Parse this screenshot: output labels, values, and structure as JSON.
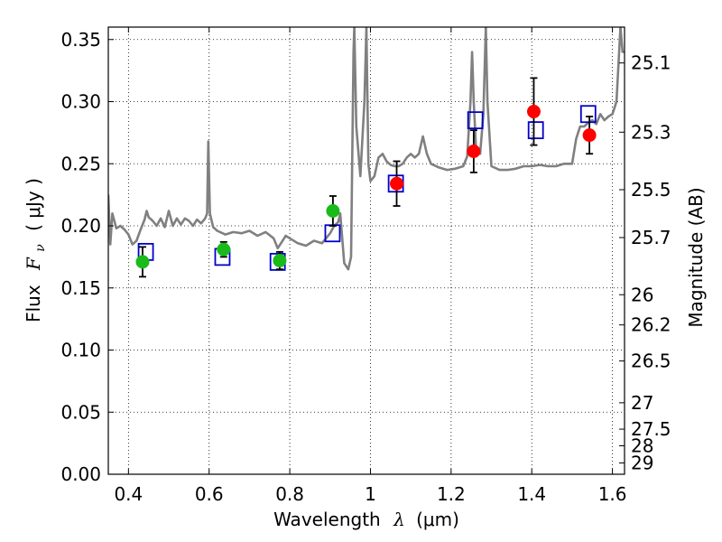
{
  "chart_data": {
    "type": "scatter",
    "xlabel_main": "Wavelength",
    "xlabel_symbol": "λ",
    "xlabel_unit": "(μm)",
    "ylabel_main": "Flux",
    "ylabel_symbol": "F",
    "ylabel_sub": "ν",
    "ylabel_unit": "( μJy )",
    "ylabel_right": "Magnitude (AB)",
    "xlim": [
      0.35,
      1.63
    ],
    "ylim": [
      0.0,
      0.36
    ],
    "grid": true,
    "x_ticks": [
      {
        "v": 0.4,
        "label": "0.4"
      },
      {
        "v": 0.6,
        "label": "0.6"
      },
      {
        "v": 0.8,
        "label": "0.8"
      },
      {
        "v": 1.0,
        "label": "1"
      },
      {
        "v": 1.2,
        "label": "1.2"
      },
      {
        "v": 1.4,
        "label": "1.4"
      },
      {
        "v": 1.6,
        "label": "1.6"
      }
    ],
    "y_ticks": [
      {
        "v": 0.0,
        "label": "0.00"
      },
      {
        "v": 0.05,
        "label": "0.05"
      },
      {
        "v": 0.1,
        "label": "0.10"
      },
      {
        "v": 0.15,
        "label": "0.15"
      },
      {
        "v": 0.2,
        "label": "0.20"
      },
      {
        "v": 0.25,
        "label": "0.25"
      },
      {
        "v": 0.3,
        "label": "0.30"
      },
      {
        "v": 0.35,
        "label": "0.35"
      }
    ],
    "mag_ticks": [
      "25.1",
      "25.3",
      "25.5",
      "25.7",
      "26",
      "26.2",
      "26.5",
      "27",
      "27.5",
      "28",
      "29"
    ],
    "colors": {
      "model": "#808080",
      "optical": "#1aba1a",
      "nir": "#ff0000",
      "model_phot": "#0000cc",
      "errorbar": "#000000"
    },
    "series": [
      {
        "kind": "line",
        "color": "#808080",
        "points": [
          [
            0.35,
            0.225
          ],
          [
            0.355,
            0.185
          ],
          [
            0.36,
            0.21
          ],
          [
            0.37,
            0.198
          ],
          [
            0.38,
            0.2
          ],
          [
            0.39,
            0.197
          ],
          [
            0.4,
            0.193
          ],
          [
            0.41,
            0.185
          ],
          [
            0.42,
            0.188
          ],
          [
            0.43,
            0.197
          ],
          [
            0.44,
            0.205
          ],
          [
            0.445,
            0.212
          ],
          [
            0.45,
            0.207
          ],
          [
            0.46,
            0.204
          ],
          [
            0.47,
            0.2
          ],
          [
            0.48,
            0.206
          ],
          [
            0.49,
            0.199
          ],
          [
            0.5,
            0.212
          ],
          [
            0.51,
            0.2
          ],
          [
            0.52,
            0.206
          ],
          [
            0.53,
            0.201
          ],
          [
            0.54,
            0.206
          ],
          [
            0.55,
            0.204
          ],
          [
            0.56,
            0.2
          ],
          [
            0.57,
            0.205
          ],
          [
            0.58,
            0.202
          ],
          [
            0.59,
            0.206
          ],
          [
            0.595,
            0.21
          ],
          [
            0.598,
            0.268
          ],
          [
            0.602,
            0.21
          ],
          [
            0.61,
            0.199
          ],
          [
            0.62,
            0.196
          ],
          [
            0.64,
            0.193
          ],
          [
            0.66,
            0.195
          ],
          [
            0.68,
            0.194
          ],
          [
            0.7,
            0.196
          ],
          [
            0.72,
            0.192
          ],
          [
            0.74,
            0.195
          ],
          [
            0.76,
            0.19
          ],
          [
            0.77,
            0.182
          ],
          [
            0.78,
            0.187
          ],
          [
            0.79,
            0.192
          ],
          [
            0.8,
            0.19
          ],
          [
            0.82,
            0.186
          ],
          [
            0.84,
            0.184
          ],
          [
            0.86,
            0.188
          ],
          [
            0.88,
            0.186
          ],
          [
            0.9,
            0.194
          ],
          [
            0.91,
            0.2
          ],
          [
            0.92,
            0.203
          ],
          [
            0.925,
            0.21
          ],
          [
            0.93,
            0.19
          ],
          [
            0.935,
            0.17
          ],
          [
            0.945,
            0.165
          ],
          [
            0.952,
            0.175
          ],
          [
            0.958,
            0.34
          ],
          [
            0.96,
            0.36
          ],
          [
            0.965,
            0.28
          ],
          [
            0.975,
            0.24
          ],
          [
            0.985,
            0.3
          ],
          [
            0.99,
            0.36
          ],
          [
            0.995,
            0.25
          ],
          [
            1.0,
            0.236
          ],
          [
            1.01,
            0.24
          ],
          [
            1.02,
            0.255
          ],
          [
            1.03,
            0.258
          ],
          [
            1.04,
            0.252
          ],
          [
            1.05,
            0.249
          ],
          [
            1.06,
            0.248
          ],
          [
            1.07,
            0.248
          ],
          [
            1.08,
            0.25
          ],
          [
            1.09,
            0.255
          ],
          [
            1.1,
            0.258
          ],
          [
            1.11,
            0.255
          ],
          [
            1.12,
            0.258
          ],
          [
            1.13,
            0.272
          ],
          [
            1.14,
            0.258
          ],
          [
            1.15,
            0.25
          ],
          [
            1.17,
            0.247
          ],
          [
            1.19,
            0.245
          ],
          [
            1.21,
            0.246
          ],
          [
            1.23,
            0.248
          ],
          [
            1.24,
            0.256
          ],
          [
            1.248,
            0.3
          ],
          [
            1.252,
            0.34
          ],
          [
            1.256,
            0.3
          ],
          [
            1.262,
            0.26
          ],
          [
            1.272,
            0.258
          ],
          [
            1.28,
            0.29
          ],
          [
            1.286,
            0.36
          ],
          [
            1.29,
            0.3
          ],
          [
            1.3,
            0.248
          ],
          [
            1.32,
            0.245
          ],
          [
            1.34,
            0.245
          ],
          [
            1.36,
            0.246
          ],
          [
            1.38,
            0.248
          ],
          [
            1.4,
            0.248
          ],
          [
            1.42,
            0.249
          ],
          [
            1.44,
            0.248
          ],
          [
            1.46,
            0.248
          ],
          [
            1.48,
            0.25
          ],
          [
            1.5,
            0.25
          ],
          [
            1.51,
            0.27
          ],
          [
            1.52,
            0.28
          ],
          [
            1.53,
            0.28
          ],
          [
            1.54,
            0.283
          ],
          [
            1.55,
            0.285
          ],
          [
            1.56,
            0.282
          ],
          [
            1.57,
            0.29
          ],
          [
            1.58,
            0.285
          ],
          [
            1.59,
            0.288
          ],
          [
            1.6,
            0.29
          ],
          [
            1.61,
            0.3
          ],
          [
            1.615,
            0.33
          ],
          [
            1.62,
            0.36
          ],
          [
            1.625,
            0.34
          ],
          [
            1.63,
            0.34
          ]
        ]
      },
      {
        "kind": "squares",
        "color": "#0000cc",
        "points": [
          [
            0.443,
            0.179
          ],
          [
            0.633,
            0.175
          ],
          [
            0.77,
            0.171
          ],
          [
            0.906,
            0.194
          ],
          [
            1.063,
            0.234
          ],
          [
            1.26,
            0.285
          ],
          [
            1.41,
            0.277
          ],
          [
            1.54,
            0.29
          ]
        ]
      },
      {
        "kind": "circles",
        "color": "#1aba1a",
        "points": [
          [
            0.435,
            0.171,
            0.012
          ],
          [
            0.636,
            0.181,
            0.006
          ],
          [
            0.775,
            0.172,
            0.007
          ],
          [
            0.907,
            0.212,
            0.012
          ]
        ]
      },
      {
        "kind": "circles",
        "color": "#ff0000",
        "points": [
          [
            1.065,
            0.234,
            0.018
          ],
          [
            1.256,
            0.26,
            0.017
          ],
          [
            1.405,
            0.292,
            0.027
          ],
          [
            1.543,
            0.273,
            0.015
          ]
        ]
      }
    ]
  }
}
